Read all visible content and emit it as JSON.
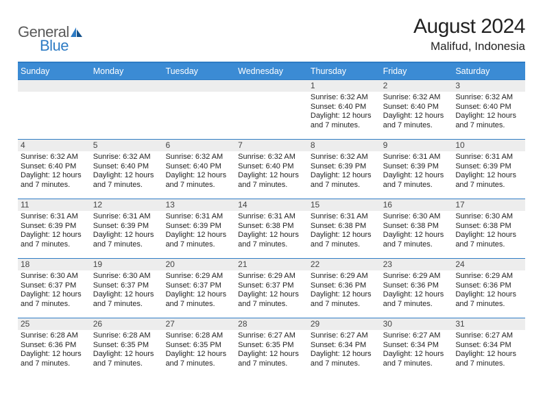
{
  "logo": {
    "text1": "General",
    "text2": "Blue"
  },
  "title": "August 2024",
  "location": "Malifud, Indonesia",
  "colors": {
    "header_bg": "#3b8bd4",
    "header_text": "#ffffff",
    "border": "#2d7bc4",
    "daynum_bg": "#ededed",
    "logo_gray": "#5a5a5a",
    "logo_blue": "#2d7bc4"
  },
  "day_headers": [
    "Sunday",
    "Monday",
    "Tuesday",
    "Wednesday",
    "Thursday",
    "Friday",
    "Saturday"
  ],
  "weeks": [
    [
      {
        "n": "",
        "sr": "",
        "ss": "",
        "dl": ""
      },
      {
        "n": "",
        "sr": "",
        "ss": "",
        "dl": ""
      },
      {
        "n": "",
        "sr": "",
        "ss": "",
        "dl": ""
      },
      {
        "n": "",
        "sr": "",
        "ss": "",
        "dl": ""
      },
      {
        "n": "1",
        "sr": "6:32 AM",
        "ss": "6:40 PM",
        "dl": "12 hours and 7 minutes."
      },
      {
        "n": "2",
        "sr": "6:32 AM",
        "ss": "6:40 PM",
        "dl": "12 hours and 7 minutes."
      },
      {
        "n": "3",
        "sr": "6:32 AM",
        "ss": "6:40 PM",
        "dl": "12 hours and 7 minutes."
      }
    ],
    [
      {
        "n": "4",
        "sr": "6:32 AM",
        "ss": "6:40 PM",
        "dl": "12 hours and 7 minutes."
      },
      {
        "n": "5",
        "sr": "6:32 AM",
        "ss": "6:40 PM",
        "dl": "12 hours and 7 minutes."
      },
      {
        "n": "6",
        "sr": "6:32 AM",
        "ss": "6:40 PM",
        "dl": "12 hours and 7 minutes."
      },
      {
        "n": "7",
        "sr": "6:32 AM",
        "ss": "6:40 PM",
        "dl": "12 hours and 7 minutes."
      },
      {
        "n": "8",
        "sr": "6:32 AM",
        "ss": "6:39 PM",
        "dl": "12 hours and 7 minutes."
      },
      {
        "n": "9",
        "sr": "6:31 AM",
        "ss": "6:39 PM",
        "dl": "12 hours and 7 minutes."
      },
      {
        "n": "10",
        "sr": "6:31 AM",
        "ss": "6:39 PM",
        "dl": "12 hours and 7 minutes."
      }
    ],
    [
      {
        "n": "11",
        "sr": "6:31 AM",
        "ss": "6:39 PM",
        "dl": "12 hours and 7 minutes."
      },
      {
        "n": "12",
        "sr": "6:31 AM",
        "ss": "6:39 PM",
        "dl": "12 hours and 7 minutes."
      },
      {
        "n": "13",
        "sr": "6:31 AM",
        "ss": "6:39 PM",
        "dl": "12 hours and 7 minutes."
      },
      {
        "n": "14",
        "sr": "6:31 AM",
        "ss": "6:38 PM",
        "dl": "12 hours and 7 minutes."
      },
      {
        "n": "15",
        "sr": "6:31 AM",
        "ss": "6:38 PM",
        "dl": "12 hours and 7 minutes."
      },
      {
        "n": "16",
        "sr": "6:30 AM",
        "ss": "6:38 PM",
        "dl": "12 hours and 7 minutes."
      },
      {
        "n": "17",
        "sr": "6:30 AM",
        "ss": "6:38 PM",
        "dl": "12 hours and 7 minutes."
      }
    ],
    [
      {
        "n": "18",
        "sr": "6:30 AM",
        "ss": "6:37 PM",
        "dl": "12 hours and 7 minutes."
      },
      {
        "n": "19",
        "sr": "6:30 AM",
        "ss": "6:37 PM",
        "dl": "12 hours and 7 minutes."
      },
      {
        "n": "20",
        "sr": "6:29 AM",
        "ss": "6:37 PM",
        "dl": "12 hours and 7 minutes."
      },
      {
        "n": "21",
        "sr": "6:29 AM",
        "ss": "6:37 PM",
        "dl": "12 hours and 7 minutes."
      },
      {
        "n": "22",
        "sr": "6:29 AM",
        "ss": "6:36 PM",
        "dl": "12 hours and 7 minutes."
      },
      {
        "n": "23",
        "sr": "6:29 AM",
        "ss": "6:36 PM",
        "dl": "12 hours and 7 minutes."
      },
      {
        "n": "24",
        "sr": "6:29 AM",
        "ss": "6:36 PM",
        "dl": "12 hours and 7 minutes."
      }
    ],
    [
      {
        "n": "25",
        "sr": "6:28 AM",
        "ss": "6:36 PM",
        "dl": "12 hours and 7 minutes."
      },
      {
        "n": "26",
        "sr": "6:28 AM",
        "ss": "6:35 PM",
        "dl": "12 hours and 7 minutes."
      },
      {
        "n": "27",
        "sr": "6:28 AM",
        "ss": "6:35 PM",
        "dl": "12 hours and 7 minutes."
      },
      {
        "n": "28",
        "sr": "6:27 AM",
        "ss": "6:35 PM",
        "dl": "12 hours and 7 minutes."
      },
      {
        "n": "29",
        "sr": "6:27 AM",
        "ss": "6:34 PM",
        "dl": "12 hours and 7 minutes."
      },
      {
        "n": "30",
        "sr": "6:27 AM",
        "ss": "6:34 PM",
        "dl": "12 hours and 7 minutes."
      },
      {
        "n": "31",
        "sr": "6:27 AM",
        "ss": "6:34 PM",
        "dl": "12 hours and 7 minutes."
      }
    ]
  ],
  "labels": {
    "sunrise": "Sunrise:",
    "sunset": "Sunset:",
    "daylight": "Daylight:"
  }
}
